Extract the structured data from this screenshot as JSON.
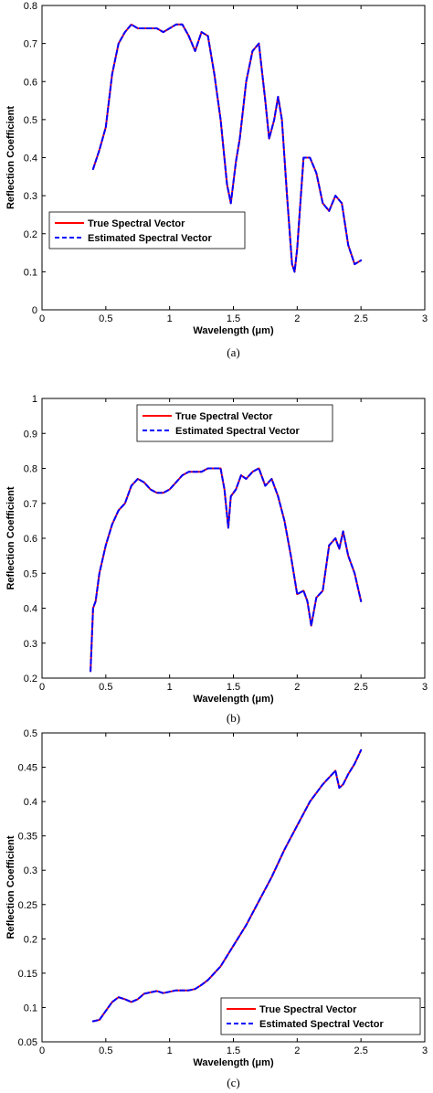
{
  "colors": {
    "true_series": "#ff0000",
    "estimated_series": "#0000ff",
    "axes": "#000000",
    "background": "#ffffff"
  },
  "chart_data": [
    {
      "type": "line",
      "caption": "(a)",
      "xlabel": "Wavelength (μm)",
      "ylabel": "Reflection Coefficient",
      "xlim": [
        0,
        3
      ],
      "ylim": [
        0,
        0.8
      ],
      "xticks": [
        "0",
        "0.5",
        "1",
        "1.5",
        "2",
        "2.5",
        "3"
      ],
      "yticks": [
        "0",
        "0.1",
        "0.2",
        "0.3",
        "0.4",
        "0.5",
        "0.6",
        "0.7",
        "0.8"
      ],
      "grid": false,
      "legend_position": "bottom-left",
      "series": [
        {
          "name": "True Spectral Vector",
          "style": "solid",
          "color": "#ff0000"
        },
        {
          "name": "Estimated Spectral Vector",
          "style": "dashed",
          "color": "#0000ff"
        }
      ],
      "x": [
        0.4,
        0.45,
        0.5,
        0.55,
        0.6,
        0.65,
        0.7,
        0.75,
        0.8,
        0.85,
        0.9,
        0.95,
        1.0,
        1.05,
        1.1,
        1.15,
        1.2,
        1.25,
        1.3,
        1.35,
        1.4,
        1.45,
        1.48,
        1.52,
        1.55,
        1.6,
        1.65,
        1.7,
        1.75,
        1.78,
        1.82,
        1.85,
        1.88,
        1.92,
        1.96,
        1.98,
        2.0,
        2.05,
        2.1,
        2.15,
        2.2,
        2.25,
        2.3,
        2.35,
        2.4,
        2.45,
        2.5
      ],
      "y": [
        0.37,
        0.42,
        0.48,
        0.62,
        0.7,
        0.73,
        0.75,
        0.74,
        0.74,
        0.74,
        0.74,
        0.73,
        0.74,
        0.75,
        0.75,
        0.72,
        0.68,
        0.73,
        0.72,
        0.62,
        0.5,
        0.33,
        0.28,
        0.39,
        0.45,
        0.6,
        0.68,
        0.7,
        0.55,
        0.45,
        0.5,
        0.56,
        0.5,
        0.3,
        0.12,
        0.1,
        0.16,
        0.4,
        0.4,
        0.36,
        0.28,
        0.26,
        0.3,
        0.28,
        0.17,
        0.12,
        0.13
      ]
    },
    {
      "type": "line",
      "caption": "(b)",
      "xlabel": "Wavelength (μm)",
      "ylabel": "Reflection Coefficient",
      "xlim": [
        0,
        3
      ],
      "ylim": [
        0.2,
        1
      ],
      "xticks": [
        "0",
        "0.5",
        "1",
        "1.5",
        "2",
        "2.5",
        "3"
      ],
      "yticks": [
        "0.2",
        "0.3",
        "0.4",
        "0.5",
        "0.6",
        "0.7",
        "0.8",
        "0.9",
        "1"
      ],
      "grid": false,
      "legend_position": "top-center",
      "series": [
        {
          "name": "True Spectral Vector",
          "style": "solid",
          "color": "#ff0000"
        },
        {
          "name": "Estimated Spectral Vector",
          "style": "dashed",
          "color": "#0000ff"
        }
      ],
      "x": [
        0.38,
        0.4,
        0.42,
        0.45,
        0.5,
        0.55,
        0.6,
        0.65,
        0.7,
        0.75,
        0.8,
        0.85,
        0.9,
        0.95,
        1.0,
        1.05,
        1.1,
        1.15,
        1.2,
        1.25,
        1.3,
        1.35,
        1.4,
        1.43,
        1.46,
        1.48,
        1.52,
        1.56,
        1.6,
        1.65,
        1.7,
        1.75,
        1.8,
        1.85,
        1.9,
        1.95,
        2.0,
        2.05,
        2.08,
        2.11,
        2.15,
        2.2,
        2.25,
        2.3,
        2.33,
        2.36,
        2.4,
        2.45,
        2.5
      ],
      "y": [
        0.22,
        0.4,
        0.42,
        0.5,
        0.58,
        0.64,
        0.68,
        0.7,
        0.75,
        0.77,
        0.76,
        0.74,
        0.73,
        0.73,
        0.74,
        0.76,
        0.78,
        0.79,
        0.79,
        0.79,
        0.8,
        0.8,
        0.8,
        0.74,
        0.63,
        0.72,
        0.74,
        0.78,
        0.77,
        0.79,
        0.8,
        0.75,
        0.77,
        0.72,
        0.65,
        0.55,
        0.44,
        0.45,
        0.42,
        0.35,
        0.43,
        0.45,
        0.58,
        0.6,
        0.57,
        0.62,
        0.55,
        0.5,
        0.42
      ]
    },
    {
      "type": "line",
      "caption": "(c)",
      "xlabel": "Wavelength (μm)",
      "ylabel": "Reflection Coefficient",
      "xlim": [
        0,
        3
      ],
      "ylim": [
        0.05,
        0.5
      ],
      "xticks": [
        "0",
        "0.5",
        "1",
        "1.5",
        "2",
        "2.5",
        "3"
      ],
      "yticks": [
        "0.05",
        "0.1",
        "0.15",
        "0.2",
        "0.25",
        "0.3",
        "0.35",
        "0.4",
        "0.45",
        "0.5"
      ],
      "grid": false,
      "legend_position": "bottom-right",
      "series": [
        {
          "name": "True Spectral Vector",
          "style": "solid",
          "color": "#ff0000"
        },
        {
          "name": "Estimated Spectral Vector",
          "style": "dashed",
          "color": "#0000ff"
        }
      ],
      "x": [
        0.4,
        0.45,
        0.5,
        0.55,
        0.6,
        0.65,
        0.7,
        0.75,
        0.8,
        0.85,
        0.9,
        0.95,
        1.0,
        1.05,
        1.1,
        1.15,
        1.2,
        1.25,
        1.3,
        1.4,
        1.5,
        1.6,
        1.7,
        1.8,
        1.9,
        2.0,
        2.1,
        2.2,
        2.25,
        2.3,
        2.33,
        2.36,
        2.4,
        2.45,
        2.5
      ],
      "y": [
        0.08,
        0.082,
        0.095,
        0.108,
        0.115,
        0.112,
        0.108,
        0.112,
        0.12,
        0.122,
        0.124,
        0.121,
        0.123,
        0.125,
        0.125,
        0.125,
        0.127,
        0.133,
        0.14,
        0.16,
        0.19,
        0.22,
        0.255,
        0.29,
        0.33,
        0.365,
        0.4,
        0.425,
        0.435,
        0.445,
        0.42,
        0.425,
        0.44,
        0.455,
        0.475
      ]
    }
  ]
}
